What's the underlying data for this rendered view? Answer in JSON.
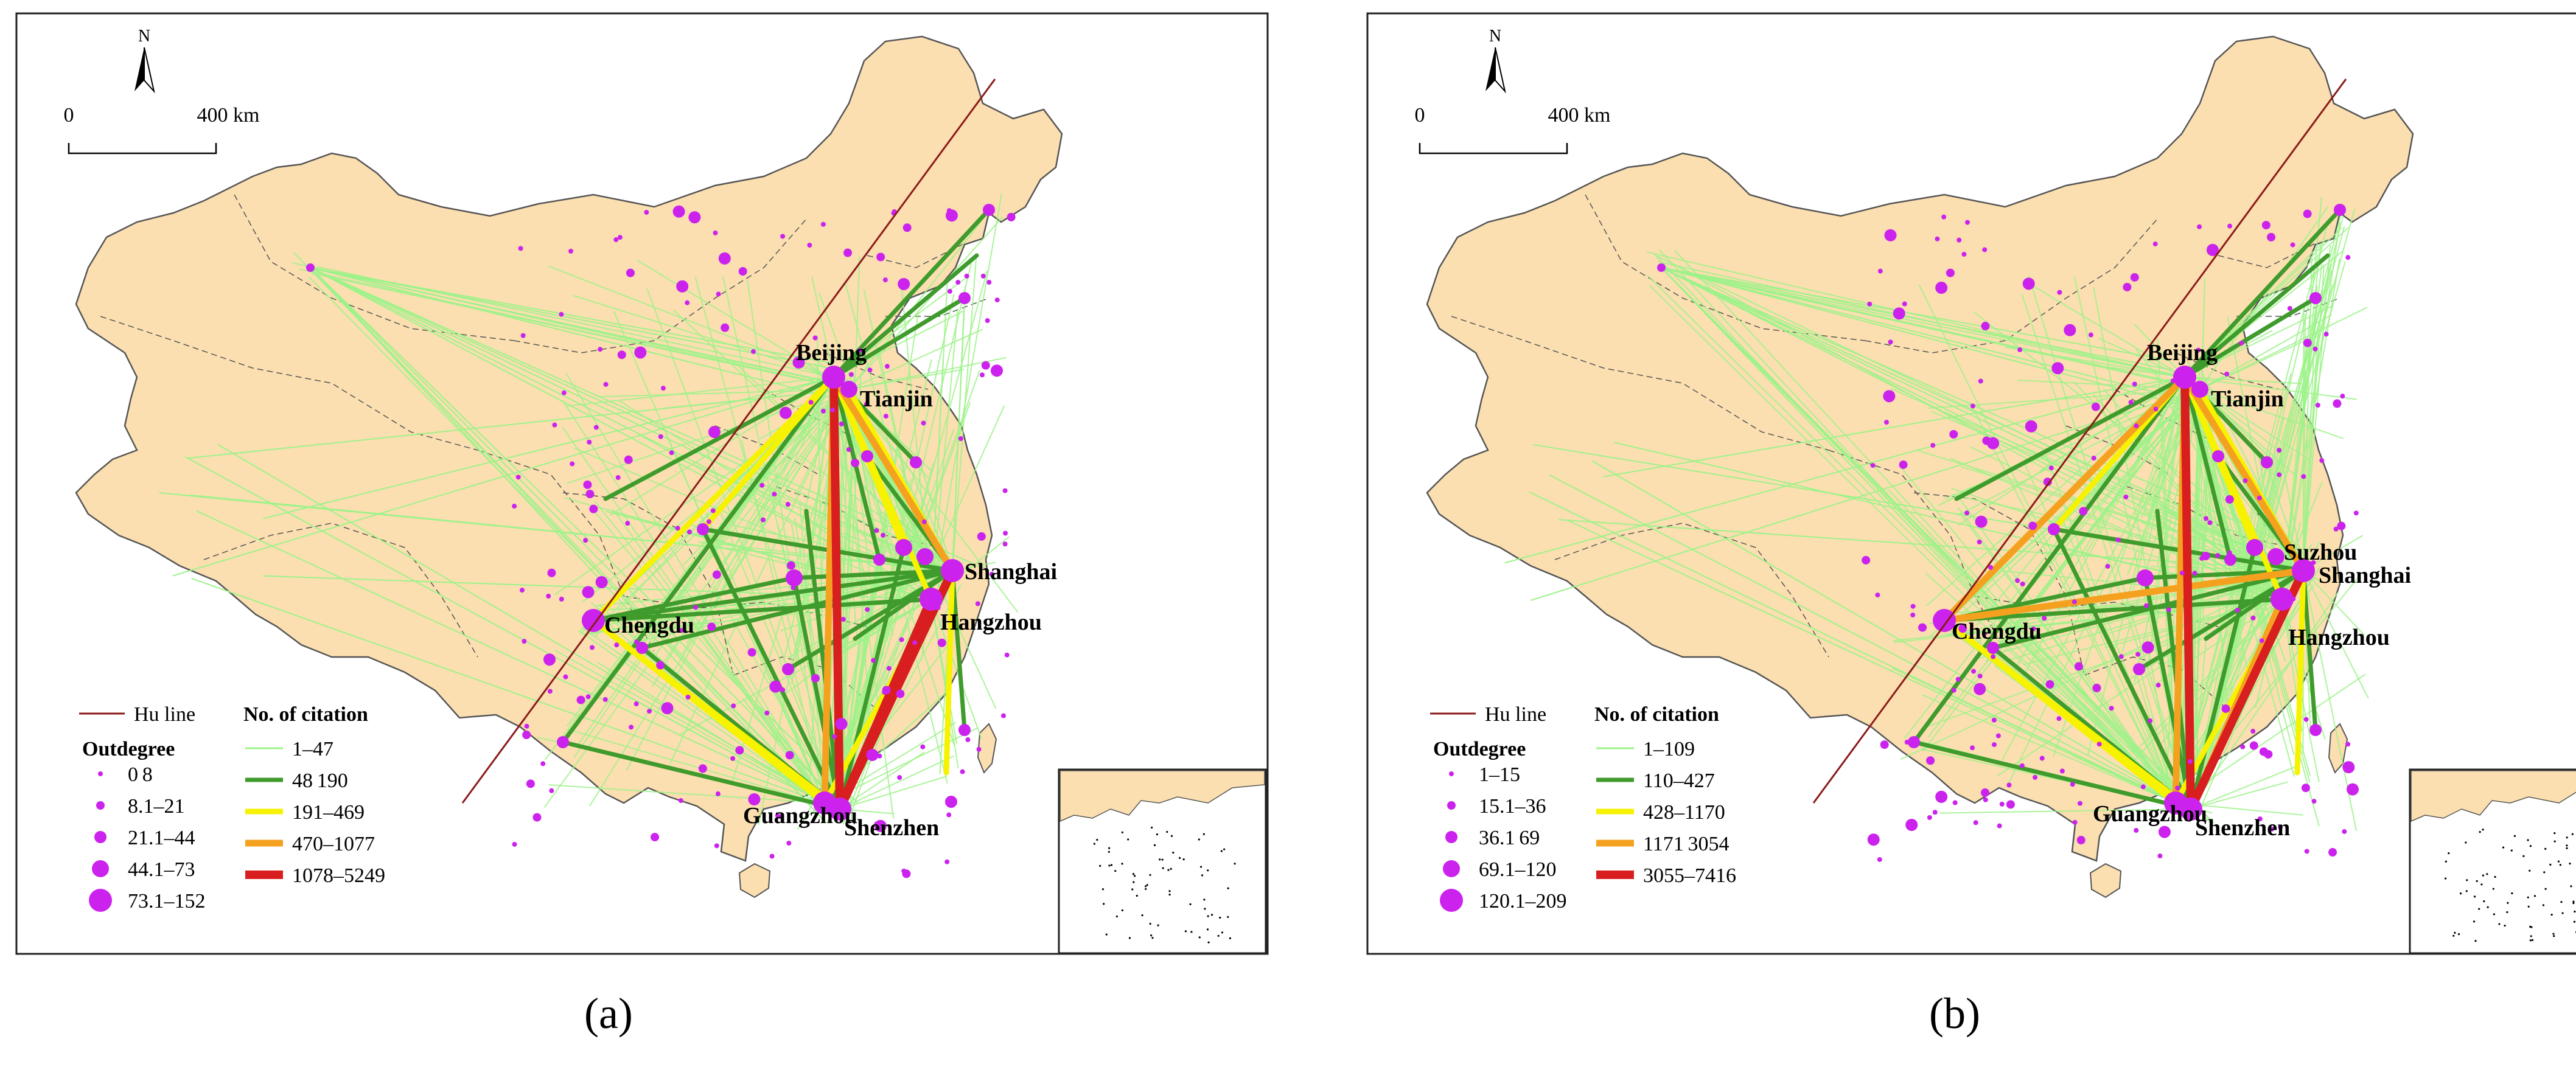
{
  "colors": {
    "land": "#fbdfb0",
    "sea": "#ffffff",
    "border": "#555555",
    "node": "#cc22ee",
    "hu_line": "#8b1a1a",
    "class1": "#9df28a",
    "class2": "#3f9b2c",
    "class3": "#f6f200",
    "class4": "#f5a120",
    "class5": "#d81e1e"
  },
  "panels": [
    {
      "id": "a",
      "label": "(a)",
      "north": "N",
      "scale": {
        "zero": "0",
        "distance": "400 km"
      },
      "hu_line_label": "Hu line",
      "citation_title": "No. of citation",
      "outdegree_title": "Outdegree",
      "citation_classes": [
        "1–47",
        "48 190",
        "191–469",
        "470–1077",
        "1078–5249"
      ],
      "outdegree_classes": [
        "0 8",
        "8.1–21",
        "21.1–44",
        "44.1–73",
        "73.1–152"
      ],
      "cities": [
        "Beijing",
        "Tianjin",
        "Shanghai",
        "Hangzhou",
        "Chengdu",
        "Guangzhou",
        "Shenzhen"
      ]
    },
    {
      "id": "b",
      "label": "(b)",
      "north": "N",
      "scale": {
        "zero": "0",
        "distance": "400 km"
      },
      "hu_line_label": "Hu line",
      "citation_title": "No. of citation",
      "outdegree_title": "Outdegree",
      "citation_classes": [
        "1–109",
        "110–427",
        "428–1170",
        "1171 3054",
        "3055–7416"
      ],
      "outdegree_classes": [
        "1–15",
        "15.1–36",
        "36.1 69",
        "69.1–120",
        "120.1–209"
      ],
      "cities": [
        "Beijing",
        "Tianjin",
        "Suzhou",
        "Shanghai",
        "Hangzhou",
        "Chengdu",
        "Guangzhou",
        "Shenzhen"
      ]
    }
  ]
}
